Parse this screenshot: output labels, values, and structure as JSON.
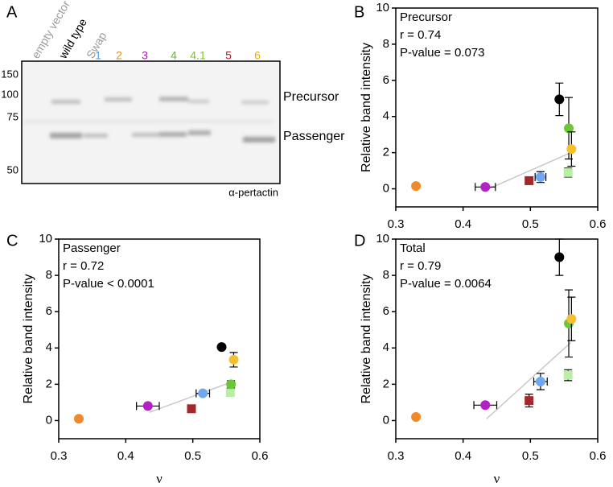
{
  "blot": {
    "panel_label": "A",
    "lanes": [
      {
        "label": "empty vector",
        "color": "#9a9a9a"
      },
      {
        "label": "wild type",
        "color": "#000000"
      },
      {
        "label": "Swap",
        "color": "#9a9a9a"
      },
      {
        "label": "1",
        "color": "#4a9fe0"
      },
      {
        "label": "2",
        "color": "#f08a1c"
      },
      {
        "label": "3",
        "color": "#b01bb8"
      },
      {
        "label": "4",
        "color": "#5cbf2a"
      },
      {
        "label": "4.1",
        "color": "#7cc62a"
      },
      {
        "label": "5",
        "color": "#a5232a"
      },
      {
        "label": "6",
        "color": "#e8b000"
      }
    ],
    "markers": [
      150,
      100,
      75,
      50
    ],
    "band_labels": [
      "Precursor",
      "Passenger"
    ],
    "antibody": "α-pertactin"
  },
  "chart_data": [
    {
      "type": "scatter",
      "panel_label": "B",
      "title": "Precursor",
      "annotations": [
        "r = 0.74",
        "P-value = 0.073"
      ],
      "ylabel": "Relative band intensity",
      "xlim": [
        0.3,
        0.6
      ],
      "xticks": [
        0.3,
        0.4,
        0.5,
        0.6
      ],
      "ylim": [
        -1,
        10
      ],
      "yticks": [
        0,
        2,
        4,
        6,
        8,
        10
      ],
      "points": {
        "x": [
          0.33,
          0.433,
          0.498,
          0.515,
          0.556,
          0.557,
          0.561,
          0.543
        ],
        "y": [
          0.15,
          0.1,
          0.45,
          0.65,
          0.9,
          3.35,
          2.2,
          4.95
        ],
        "xerr": [
          null,
          0.015,
          null,
          0.008,
          null,
          null,
          null,
          null
        ],
        "yerr": [
          null,
          null,
          0.15,
          0.3,
          0.25,
          1.7,
          0.95,
          0.9
        ],
        "colors": [
          "#f0892b",
          "#b221c4",
          "#a3282c",
          "#6fa8f0",
          "#b6f0a0",
          "#6cc53a",
          "#f5c02c",
          "#000000"
        ],
        "markers": [
          "circle",
          "circle",
          "square",
          "circle",
          "square",
          "circle",
          "circle",
          "circle"
        ]
      },
      "trendline": {
        "x": [
          0.435,
          0.56
        ],
        "y": [
          -0.05,
          2.0
        ],
        "color": "#c8c8c8"
      }
    },
    {
      "type": "scatter",
      "panel_label": "C",
      "title": "Passenger",
      "annotations": [
        "r = 0.72",
        "P-value < 0.0001"
      ],
      "xlabel": "ν",
      "ylabel": "Relative band intensity",
      "xlim": [
        0.3,
        0.6
      ],
      "xticks": [
        0.3,
        0.4,
        0.5,
        0.6
      ],
      "ylim": [
        -1,
        10
      ],
      "yticks": [
        0,
        2,
        4,
        6,
        8,
        10
      ],
      "points": {
        "x": [
          0.33,
          0.433,
          0.498,
          0.515,
          0.556,
          0.557,
          0.561,
          0.543
        ],
        "y": [
          0.1,
          0.8,
          0.65,
          1.5,
          1.55,
          2.0,
          3.35,
          4.05
        ],
        "xerr": [
          null,
          0.017,
          null,
          0.01,
          null,
          null,
          null,
          null
        ],
        "yerr": [
          null,
          null,
          0.12,
          null,
          null,
          0.2,
          0.4,
          null
        ],
        "colors": [
          "#f0892b",
          "#b221c4",
          "#a3282c",
          "#6fa8f0",
          "#b6f0a0",
          "#6cc53a",
          "#f5c02c",
          "#000000"
        ],
        "markers": [
          "circle",
          "circle",
          "square",
          "circle",
          "square",
          "circle",
          "circle",
          "circle"
        ]
      },
      "trendline": {
        "x": [
          0.435,
          0.56
        ],
        "y": [
          0.45,
          2.15
        ],
        "color": "#c8c8c8"
      }
    },
    {
      "type": "scatter",
      "panel_label": "D",
      "title": "Total",
      "annotations": [
        "r = 0.79",
        "P-value = 0.0064"
      ],
      "xlabel": "ν",
      "ylabel": "Relative band intensity",
      "xlim": [
        0.3,
        0.6
      ],
      "xticks": [
        0.3,
        0.4,
        0.5,
        0.6
      ],
      "ylim": [
        -1,
        10
      ],
      "yticks": [
        0,
        2,
        4,
        6,
        8,
        10
      ],
      "points": {
        "x": [
          0.33,
          0.433,
          0.498,
          0.515,
          0.556,
          0.557,
          0.561,
          0.543
        ],
        "y": [
          0.2,
          0.85,
          1.1,
          2.15,
          2.5,
          5.35,
          5.6,
          9.0
        ],
        "xerr": [
          null,
          0.017,
          null,
          0.01,
          null,
          null,
          null,
          null
        ],
        "yerr": [
          null,
          null,
          0.35,
          0.45,
          0.3,
          1.85,
          1.2,
          1.0
        ],
        "colors": [
          "#f0892b",
          "#b221c4",
          "#a3282c",
          "#6fa8f0",
          "#b6f0a0",
          "#6cc53a",
          "#f5c02c",
          "#000000"
        ],
        "markers": [
          "circle",
          "circle",
          "square",
          "circle",
          "square",
          "circle",
          "circle",
          "circle"
        ]
      },
      "trendline": {
        "x": [
          0.435,
          0.56
        ],
        "y": [
          0.1,
          4.3
        ],
        "color": "#c8c8c8"
      }
    }
  ]
}
